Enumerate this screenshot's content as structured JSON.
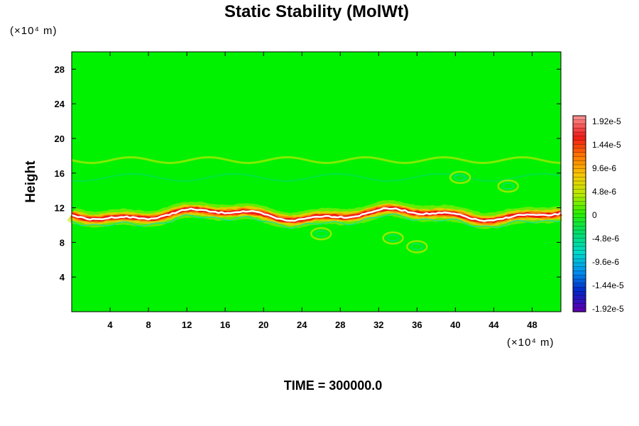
{
  "chart_data": {
    "type": "heatmap",
    "title": "Static Stability (MolWt)",
    "ylabel": "Height",
    "xlabel": "",
    "y_unit": "(×10⁴ m)",
    "x_unit": "(×10⁴ m)",
    "xlim": [
      0,
      51
    ],
    "ylim": [
      0,
      30
    ],
    "x_ticks": [
      "4",
      "8",
      "12",
      "16",
      "20",
      "24",
      "28",
      "32",
      "36",
      "40",
      "44",
      "48"
    ],
    "y_ticks": [
      "4",
      "8",
      "12",
      "16",
      "20",
      "24",
      "28"
    ],
    "x_tick_values": [
      4,
      8,
      12,
      16,
      20,
      24,
      28,
      32,
      36,
      40,
      44,
      48
    ],
    "y_tick_values": [
      4,
      8,
      12,
      16,
      20,
      24,
      28
    ],
    "colorbar": {
      "min": -1.92e-05,
      "max": 1.92e-05,
      "labels": [
        "1.92e-5",
        "1.44e-5",
        "9.6e-6",
        "4.8e-6",
        "0",
        "-4.8e-6",
        "-9.6e-6",
        "-1.44e-5",
        "-1.92e-5"
      ],
      "colors": [
        "#fa8a8a",
        "#f01818",
        "#ff7800",
        "#f7c800",
        "#b8ea00",
        "#28f000",
        "#00dc6a",
        "#00dcc8",
        "#0094f0",
        "#0028c8",
        "#5a00b4"
      ]
    },
    "features": {
      "background_value": 0,
      "band_center_height": 11.2,
      "band_peak_value": 1.92e-05,
      "upper_wave_layer_height": 17.5
    },
    "time_label": "TIME = 300000.0"
  },
  "colors": {
    "background_field": "#00f200",
    "band_core": "#ffffff",
    "band_edge": "#ff1a1a"
  }
}
